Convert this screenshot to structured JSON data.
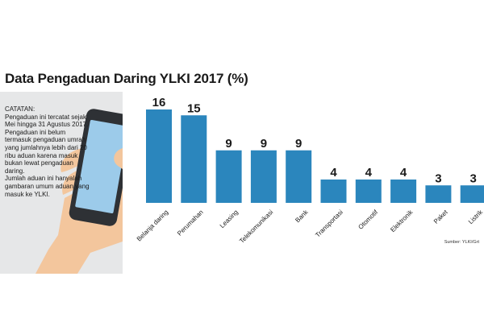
{
  "header": {
    "title": "Data Pengaduan Daring YLKI 2017 (%)"
  },
  "note": {
    "heading": "CATATAN:",
    "paragraphs": [
      "Pengaduan ini tercatat sejak Mei hingga 31 Agustus 2017. Pengaduan ini belum termasuk pengaduan umrah yang jumlahnya lebih dari 20 ribu aduan karena masuk bukan lewat pengaduan daring.",
      "Jumlah aduan ini hanyalah gambaran umum aduan yang masuk ke YLKI."
    ]
  },
  "source": "Sumber: YLKI/Grt",
  "colors": {
    "bar": "#2b86bd",
    "panel": "#e6e7e8",
    "skin": "#f3c69d",
    "phone_body": "#2e3135",
    "phone_screen": "#9ccbea"
  },
  "icons": [
    "hand-holding-phone-icon"
  ],
  "chart_data": {
    "type": "bar",
    "title": "Data Pengaduan Daring YLKI 2017 (%)",
    "categories": [
      "Belanja daring",
      "Perumahan",
      "Leasing",
      "Telekomunikasi",
      "Bank",
      "Transportasi",
      "Otomotif",
      "Elektronik",
      "Paket",
      "Listrik"
    ],
    "values": [
      16,
      15,
      9,
      9,
      9,
      4,
      4,
      4,
      3,
      3
    ],
    "xlabel": "",
    "ylabel": "",
    "ylim": [
      0,
      16
    ],
    "grid": false,
    "legend": "none",
    "data_labels": true
  }
}
